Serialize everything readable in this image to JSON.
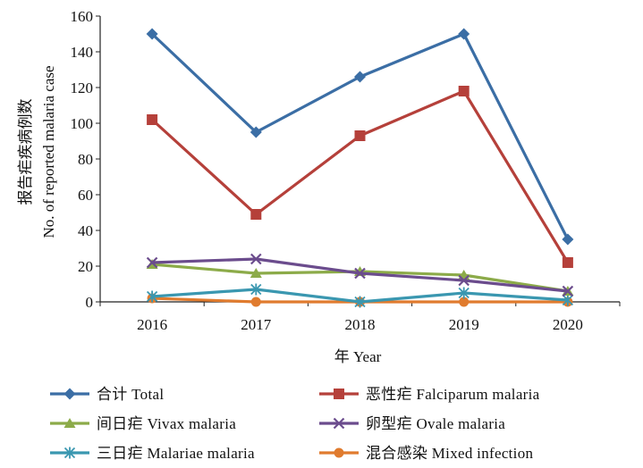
{
  "chart_data": {
    "type": "line",
    "xlabel": "年  Year",
    "ylabel_cn": "报告疟疾病例数",
    "ylabel_en": "No.  of  reported  malaria  case",
    "x": [
      "2016",
      "2017",
      "2018",
      "2019",
      "2020"
    ],
    "ylim": [
      0,
      160
    ],
    "yticks": [
      "0",
      "20",
      "40",
      "60",
      "80",
      "100",
      "120",
      "140",
      "160"
    ],
    "grid": false,
    "legend_position": "bottom",
    "series": [
      {
        "name": "合计  Total",
        "color": "#3b6ea5",
        "marker": "diamond",
        "values": [
          150,
          95,
          126,
          150,
          35
        ]
      },
      {
        "name": "恶性疟  Falciparum  malaria",
        "color": "#b5403a",
        "marker": "square",
        "values": [
          102,
          49,
          93,
          118,
          22
        ]
      },
      {
        "name": "间日疟  Vivax  malaria",
        "color": "#8cab49",
        "marker": "triangle",
        "values": [
          21,
          16,
          17,
          15,
          6
        ]
      },
      {
        "name": "卵型疟  Ovale  malaria",
        "color": "#6b4c8d",
        "marker": "x",
        "values": [
          22,
          24,
          16,
          12,
          6
        ]
      },
      {
        "name": "三日疟  Malariae  malaria",
        "color": "#3a97b0",
        "marker": "star",
        "values": [
          3,
          7,
          0,
          5,
          1
        ]
      },
      {
        "name": "混合感染  Mixed  infection",
        "color": "#e07b2e",
        "marker": "circle",
        "values": [
          2,
          0,
          0,
          0,
          0
        ]
      }
    ]
  }
}
